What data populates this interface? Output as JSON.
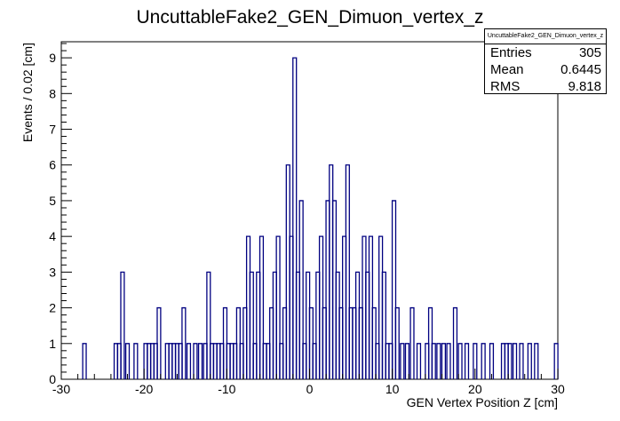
{
  "chart_data": {
    "type": "histogram",
    "title": "UncuttableFake2_GEN_Dimuon_vertex_z",
    "xlabel": "GEN Vertex Position Z [cm]",
    "ylabel": "Events / 0.02 [cm]",
    "xlim": [
      -30,
      30
    ],
    "ylim": [
      0,
      9.45
    ],
    "x_ticks": [
      -30,
      -20,
      -10,
      0,
      10,
      20,
      30
    ],
    "y_ticks": [
      0,
      1,
      2,
      3,
      4,
      5,
      6,
      7,
      8,
      9
    ],
    "grid": false,
    "stats_box": {
      "title": "UncuttableFake2_GEN_Dimuon_vertex_z",
      "rows": [
        {
          "label": "Entries",
          "value": "305"
        },
        {
          "label": "Mean",
          "value": "0.6445"
        },
        {
          "label": "RMS",
          "value": "9.818"
        }
      ]
    },
    "line_color": "#000080",
    "bins": [
      {
        "x": -27.2,
        "y": 1
      },
      {
        "x": -23.4,
        "y": 1
      },
      {
        "x": -23.0,
        "y": 1
      },
      {
        "x": -22.6,
        "y": 3
      },
      {
        "x": -22.0,
        "y": 1
      },
      {
        "x": -21.0,
        "y": 1
      },
      {
        "x": -19.8,
        "y": 1
      },
      {
        "x": -19.4,
        "y": 1
      },
      {
        "x": -19.0,
        "y": 1
      },
      {
        "x": -18.6,
        "y": 1
      },
      {
        "x": -18.2,
        "y": 2
      },
      {
        "x": -17.2,
        "y": 1
      },
      {
        "x": -16.8,
        "y": 1
      },
      {
        "x": -16.4,
        "y": 1
      },
      {
        "x": -16.0,
        "y": 1
      },
      {
        "x": -15.6,
        "y": 1
      },
      {
        "x": -15.2,
        "y": 2
      },
      {
        "x": -14.6,
        "y": 1
      },
      {
        "x": -13.8,
        "y": 1
      },
      {
        "x": -13.2,
        "y": 1
      },
      {
        "x": -12.6,
        "y": 1
      },
      {
        "x": -12.2,
        "y": 3
      },
      {
        "x": -11.8,
        "y": 1
      },
      {
        "x": -11.4,
        "y": 1
      },
      {
        "x": -11.0,
        "y": 1
      },
      {
        "x": -10.6,
        "y": 1
      },
      {
        "x": -10.2,
        "y": 2
      },
      {
        "x": -9.8,
        "y": 1
      },
      {
        "x": -9.4,
        "y": 1
      },
      {
        "x": -9.0,
        "y": 1
      },
      {
        "x": -8.6,
        "y": 2
      },
      {
        "x": -8.2,
        "y": 1
      },
      {
        "x": -7.8,
        "y": 2
      },
      {
        "x": -7.4,
        "y": 4
      },
      {
        "x": -7.0,
        "y": 3
      },
      {
        "x": -6.6,
        "y": 1
      },
      {
        "x": -6.2,
        "y": 3
      },
      {
        "x": -5.8,
        "y": 4
      },
      {
        "x": -5.4,
        "y": 1
      },
      {
        "x": -5.0,
        "y": 1
      },
      {
        "x": -4.6,
        "y": 2
      },
      {
        "x": -4.2,
        "y": 3
      },
      {
        "x": -3.8,
        "y": 4
      },
      {
        "x": -3.4,
        "y": 1
      },
      {
        "x": -3.0,
        "y": 2
      },
      {
        "x": -2.6,
        "y": 6
      },
      {
        "x": -2.2,
        "y": 4
      },
      {
        "x": -1.8,
        "y": 9
      },
      {
        "x": -1.4,
        "y": 3
      },
      {
        "x": -1.0,
        "y": 5
      },
      {
        "x": -0.6,
        "y": 1
      },
      {
        "x": -0.2,
        "y": 3
      },
      {
        "x": 0.2,
        "y": 2
      },
      {
        "x": 0.6,
        "y": 1
      },
      {
        "x": 1.0,
        "y": 3
      },
      {
        "x": 1.4,
        "y": 4
      },
      {
        "x": 1.8,
        "y": 2
      },
      {
        "x": 2.2,
        "y": 5
      },
      {
        "x": 2.6,
        "y": 6
      },
      {
        "x": 3.0,
        "y": 5
      },
      {
        "x": 3.4,
        "y": 3
      },
      {
        "x": 3.8,
        "y": 2
      },
      {
        "x": 4.2,
        "y": 4
      },
      {
        "x": 4.6,
        "y": 6
      },
      {
        "x": 5.0,
        "y": 2
      },
      {
        "x": 5.4,
        "y": 2
      },
      {
        "x": 5.8,
        "y": 3
      },
      {
        "x": 6.2,
        "y": 2
      },
      {
        "x": 6.6,
        "y": 4
      },
      {
        "x": 7.0,
        "y": 3
      },
      {
        "x": 7.4,
        "y": 4
      },
      {
        "x": 7.8,
        "y": 2
      },
      {
        "x": 8.2,
        "y": 1
      },
      {
        "x": 8.6,
        "y": 4
      },
      {
        "x": 9.0,
        "y": 3
      },
      {
        "x": 9.4,
        "y": 1
      },
      {
        "x": 9.8,
        "y": 1
      },
      {
        "x": 10.2,
        "y": 5
      },
      {
        "x": 10.6,
        "y": 2
      },
      {
        "x": 11.2,
        "y": 1
      },
      {
        "x": 11.8,
        "y": 1
      },
      {
        "x": 12.4,
        "y": 2
      },
      {
        "x": 13.2,
        "y": 1
      },
      {
        "x": 14.2,
        "y": 1
      },
      {
        "x": 14.6,
        "y": 2
      },
      {
        "x": 15.0,
        "y": 1
      },
      {
        "x": 15.6,
        "y": 1
      },
      {
        "x": 16.2,
        "y": 1
      },
      {
        "x": 16.8,
        "y": 1
      },
      {
        "x": 17.6,
        "y": 2
      },
      {
        "x": 18.2,
        "y": 1
      },
      {
        "x": 19.0,
        "y": 1
      },
      {
        "x": 20.0,
        "y": 1
      },
      {
        "x": 21.0,
        "y": 1
      },
      {
        "x": 22.0,
        "y": 1
      },
      {
        "x": 23.4,
        "y": 1
      },
      {
        "x": 23.8,
        "y": 1
      },
      {
        "x": 24.2,
        "y": 1
      },
      {
        "x": 24.8,
        "y": 1
      },
      {
        "x": 25.6,
        "y": 1
      },
      {
        "x": 26.6,
        "y": 1
      },
      {
        "x": 27.4,
        "y": 1
      },
      {
        "x": 29.8,
        "y": 1
      }
    ]
  }
}
